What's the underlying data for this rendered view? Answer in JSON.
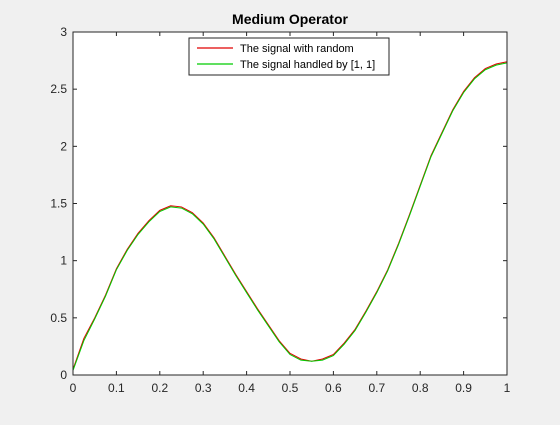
{
  "figure": {
    "background": "#f0f0f0",
    "axes_background": "#ffffff"
  },
  "chart_data": {
    "type": "line",
    "title": "Medium Operator",
    "xlabel": "",
    "ylabel": "",
    "xlim": [
      0,
      1
    ],
    "ylim": [
      0,
      3
    ],
    "xticks": [
      0,
      0.1,
      0.2,
      0.3,
      0.4,
      0.5,
      0.6,
      0.7,
      0.8,
      0.9,
      1
    ],
    "xtick_labels": [
      "0",
      "0.1",
      "0.2",
      "0.3",
      "0.4",
      "0.5",
      "0.6",
      "0.7",
      "0.8",
      "0.9",
      "1"
    ],
    "yticks": [
      0,
      0.5,
      1,
      1.5,
      2,
      2.5,
      3
    ],
    "ytick_labels": [
      "0",
      "0.5",
      "1",
      "1.5",
      "2",
      "2.5",
      "3"
    ],
    "grid": false,
    "legend_position": "top-center",
    "series": [
      {
        "name": "The signal with random",
        "color": "#e00000",
        "x": [
          0,
          0.025,
          0.05,
          0.075,
          0.1,
          0.125,
          0.15,
          0.175,
          0.2,
          0.225,
          0.25,
          0.275,
          0.3,
          0.325,
          0.35,
          0.375,
          0.4,
          0.425,
          0.45,
          0.475,
          0.5,
          0.525,
          0.55,
          0.575,
          0.6,
          0.625,
          0.65,
          0.675,
          0.7,
          0.725,
          0.75,
          0.775,
          0.8,
          0.825,
          0.85,
          0.875,
          0.9,
          0.925,
          0.95,
          0.975,
          1
        ],
        "y": [
          0.05,
          0.32,
          0.5,
          0.7,
          0.93,
          1.1,
          1.24,
          1.35,
          1.44,
          1.48,
          1.47,
          1.42,
          1.33,
          1.2,
          1.04,
          0.88,
          0.73,
          0.58,
          0.44,
          0.3,
          0.19,
          0.14,
          0.12,
          0.14,
          0.18,
          0.28,
          0.4,
          0.56,
          0.73,
          0.92,
          1.15,
          1.4,
          1.66,
          1.92,
          2.12,
          2.32,
          2.48,
          2.6,
          2.68,
          2.72,
          2.74
        ]
      },
      {
        "name": "The signal handled by [1, 1]",
        "color": "#00cc00",
        "x": [
          0,
          0.025,
          0.05,
          0.075,
          0.1,
          0.125,
          0.15,
          0.175,
          0.2,
          0.225,
          0.25,
          0.275,
          0.3,
          0.325,
          0.35,
          0.375,
          0.4,
          0.425,
          0.45,
          0.475,
          0.5,
          0.525,
          0.55,
          0.575,
          0.6,
          0.625,
          0.65,
          0.675,
          0.7,
          0.725,
          0.75,
          0.775,
          0.8,
          0.825,
          0.85,
          0.875,
          0.9,
          0.925,
          0.95,
          0.975,
          1
        ],
        "y": [
          0.04,
          0.3,
          0.49,
          0.69,
          0.92,
          1.09,
          1.23,
          1.34,
          1.43,
          1.47,
          1.46,
          1.41,
          1.32,
          1.19,
          1.03,
          0.87,
          0.72,
          0.57,
          0.43,
          0.29,
          0.18,
          0.13,
          0.12,
          0.13,
          0.17,
          0.27,
          0.39,
          0.55,
          0.72,
          0.91,
          1.14,
          1.39,
          1.65,
          1.91,
          2.11,
          2.31,
          2.47,
          2.59,
          2.67,
          2.71,
          2.73
        ]
      }
    ]
  }
}
